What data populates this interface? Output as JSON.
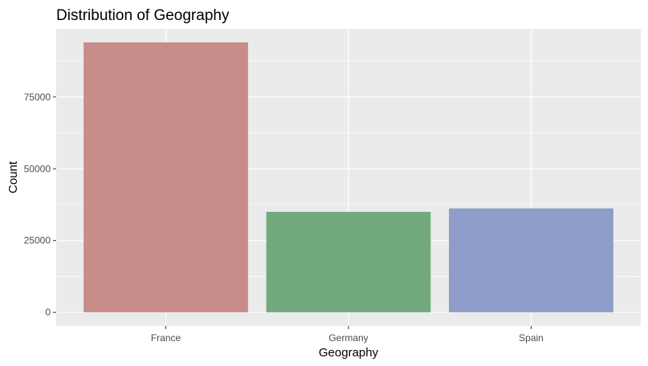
{
  "chart_data": {
    "type": "bar",
    "title": "Distribution of Geography",
    "xlabel": "Geography",
    "ylabel": "Count",
    "categories": [
      "France",
      "Germany",
      "Spain"
    ],
    "values": [
      94000,
      35000,
      36200
    ],
    "colors": [
      "#c88d8b",
      "#72aa7e",
      "#8e9dc9"
    ],
    "ylim": [
      -4700,
      98700
    ],
    "yticks": [
      0,
      25000,
      50000,
      75000
    ],
    "ytick_labels": [
      "0",
      "25000",
      "50000",
      "75000"
    ],
    "grid": true,
    "panel_background": "#ebebeb",
    "gridline_color": "#ffffff",
    "legend": "none"
  }
}
